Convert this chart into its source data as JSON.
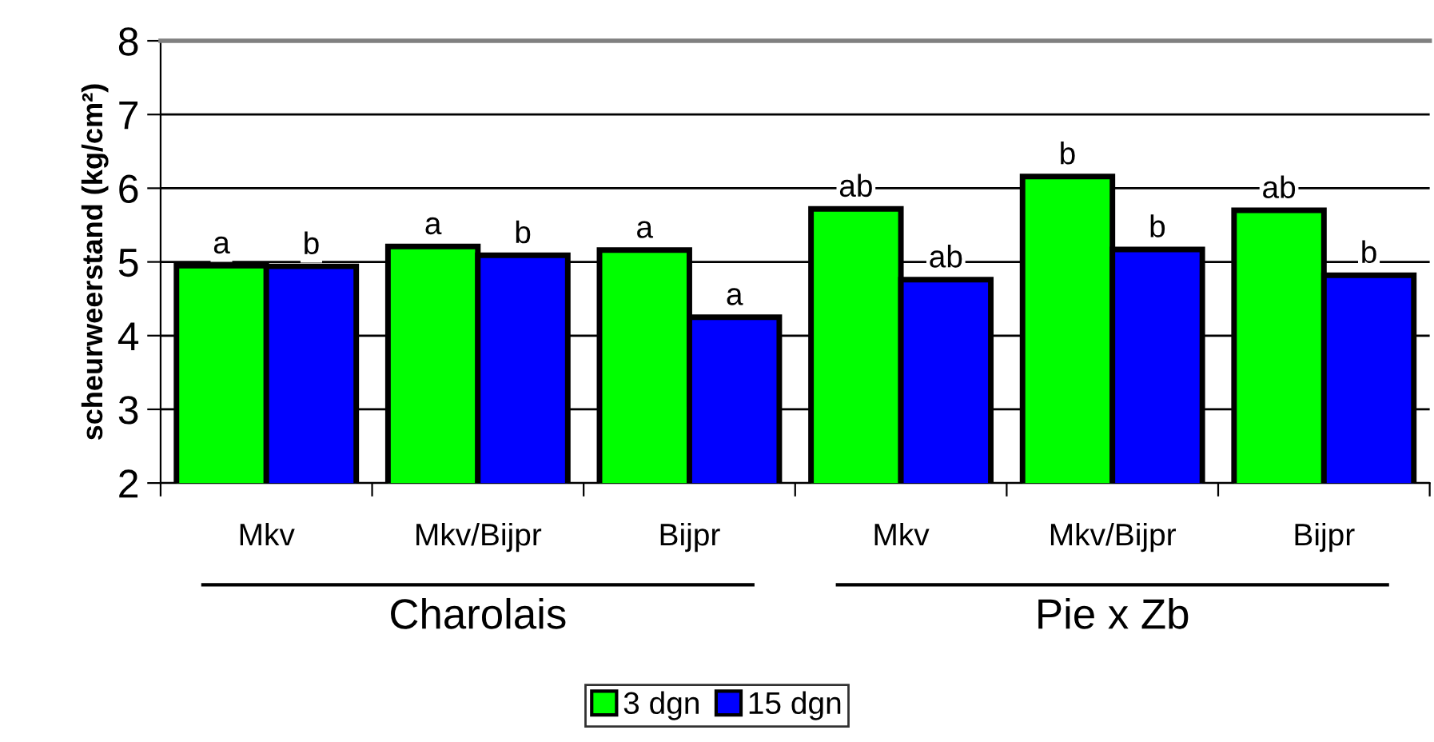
{
  "chart_data": {
    "type": "bar",
    "ylabel": "scheurweerstand (kg/cm²)",
    "categories": [
      "Mkv",
      "Mkv/Bijpr",
      "Bijpr",
      "Mkv",
      "Mkv/Bijpr",
      "Bijpr"
    ],
    "series": [
      {
        "name": "3 dgn",
        "color": "#00ff00",
        "values": [
          4.95,
          5.21,
          5.16,
          5.72,
          6.16,
          5.7
        ],
        "value_labels": [
          "a",
          "a",
          "a",
          "ab",
          "b",
          "ab"
        ]
      },
      {
        "name": "15 dgn",
        "color": "#0000ff",
        "values": [
          4.94,
          5.09,
          4.25,
          4.76,
          5.17,
          4.82
        ],
        "value_labels": [
          "b",
          "b",
          "a",
          "ab",
          "b",
          "b"
        ]
      }
    ],
    "annotations": [
      "Charolais",
      "Pie x Zb"
    ],
    "ylim": [
      2,
      8
    ],
    "yticks": [
      2,
      3,
      4,
      5,
      6,
      7,
      8
    ],
    "grid": "y",
    "legend": "bottom"
  }
}
